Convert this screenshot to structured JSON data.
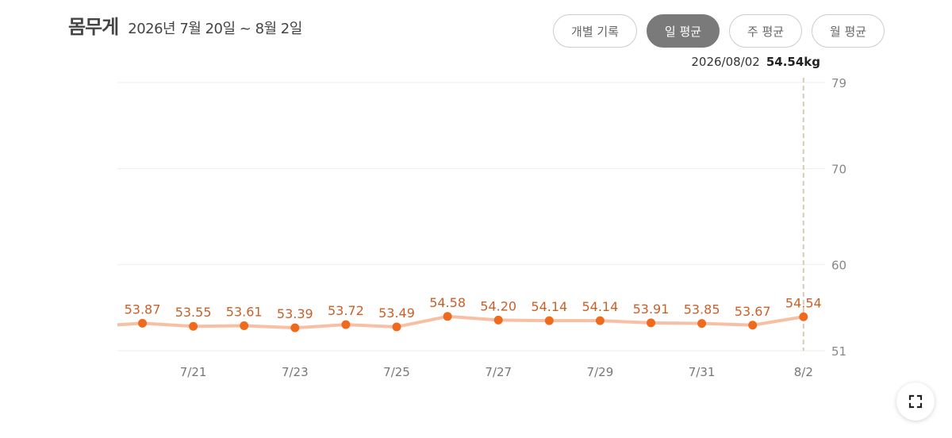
{
  "header": {
    "title": "몸무게",
    "range": "2026년 7월 20일 ~ 8월 2일"
  },
  "tabs": [
    {
      "label": "개별 기록",
      "active": false
    },
    {
      "label": "일 평균",
      "active": true
    },
    {
      "label": "주 평균",
      "active": false
    },
    {
      "label": "월 평균",
      "active": false
    }
  ],
  "readout": {
    "date": "2026/08/02",
    "value": "54.54kg"
  },
  "fullscreen": {
    "icon": "expand-icon"
  },
  "colors": {
    "line": "#f7c0a4",
    "point": "#f06a1e",
    "label": "#c8602a",
    "cursor": "#d9cbb6",
    "grid": "#eeeeee"
  },
  "chart_data": {
    "type": "line",
    "x": [
      "7/20",
      "7/21",
      "7/22",
      "7/23",
      "7/24",
      "7/25",
      "7/26",
      "7/27",
      "7/28",
      "7/29",
      "7/30",
      "7/31",
      "8/1",
      "8/2"
    ],
    "values": [
      53.87,
      53.55,
      53.61,
      53.39,
      53.72,
      53.49,
      54.58,
      54.2,
      54.14,
      54.14,
      53.91,
      53.85,
      53.67,
      54.54
    ],
    "value_labels": [
      "53.87",
      "53.55",
      "53.61",
      "53.39",
      "53.72",
      "53.49",
      "54.58",
      "54.20",
      "54.14",
      "54.14",
      "53.91",
      "53.85",
      "53.67",
      "54.54"
    ],
    "x_tick_labels": [
      "7/21",
      "7/23",
      "7/25",
      "7/27",
      "7/29",
      "7/31",
      "8/2"
    ],
    "y_ticks": [
      51,
      60,
      70,
      79
    ],
    "y_tick_labels": [
      "51",
      "60",
      "70",
      "79"
    ],
    "ylim": [
      51,
      79
    ],
    "y_axis_side": "right",
    "grid": true,
    "highlight": "8/2",
    "line_before_first_point": 53.7
  }
}
